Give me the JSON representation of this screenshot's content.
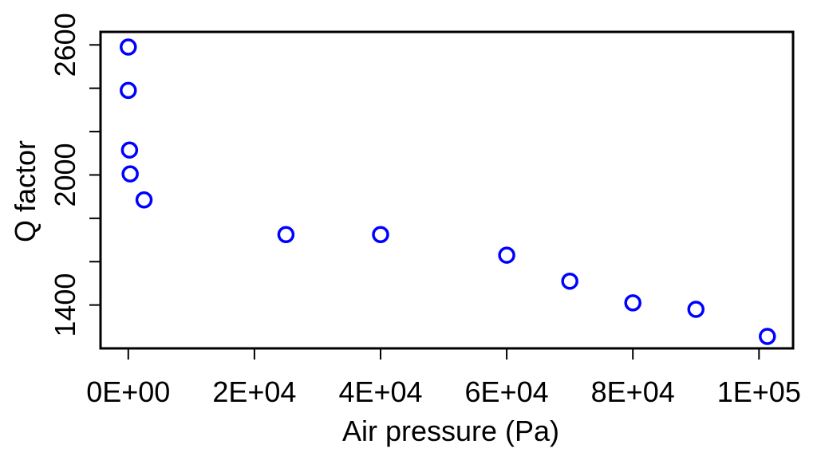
{
  "chart_data": {
    "type": "scatter",
    "xlabel": "Air pressure (Pa)",
    "ylabel": "Q factor",
    "x_ticks": [
      {
        "value": 0,
        "label": "0E+00"
      },
      {
        "value": 20000,
        "label": "2E+04"
      },
      {
        "value": 40000,
        "label": "4E+04"
      },
      {
        "value": 60000,
        "label": "6E+04"
      },
      {
        "value": 80000,
        "label": "8E+04"
      },
      {
        "value": 100000,
        "label": "1E+05"
      }
    ],
    "y_ticks": [
      {
        "value": 1400,
        "label": "1400"
      },
      {
        "value": 1600,
        "label": ""
      },
      {
        "value": 1800,
        "label": ""
      },
      {
        "value": 2000,
        "label": "2000"
      },
      {
        "value": 2200,
        "label": ""
      },
      {
        "value": 2400,
        "label": ""
      },
      {
        "value": 2600,
        "label": "2600"
      }
    ],
    "xlim": [
      -4400,
      105400
    ],
    "ylim": [
      1200,
      2660
    ],
    "grid": false,
    "legend": "none",
    "marker_color": "#0000ff",
    "series": [
      {
        "points": [
          {
            "x": 0,
            "y": 2590
          },
          {
            "x": 0,
            "y": 2390
          },
          {
            "x": 200,
            "y": 2115
          },
          {
            "x": 300,
            "y": 2005
          },
          {
            "x": 2500,
            "y": 1885
          },
          {
            "x": 25000,
            "y": 1725
          },
          {
            "x": 40000,
            "y": 1725
          },
          {
            "x": 60000,
            "y": 1630
          },
          {
            "x": 70000,
            "y": 1510
          },
          {
            "x": 80000,
            "y": 1410
          },
          {
            "x": 90000,
            "y": 1380
          },
          {
            "x": 101325,
            "y": 1255
          }
        ]
      }
    ]
  }
}
